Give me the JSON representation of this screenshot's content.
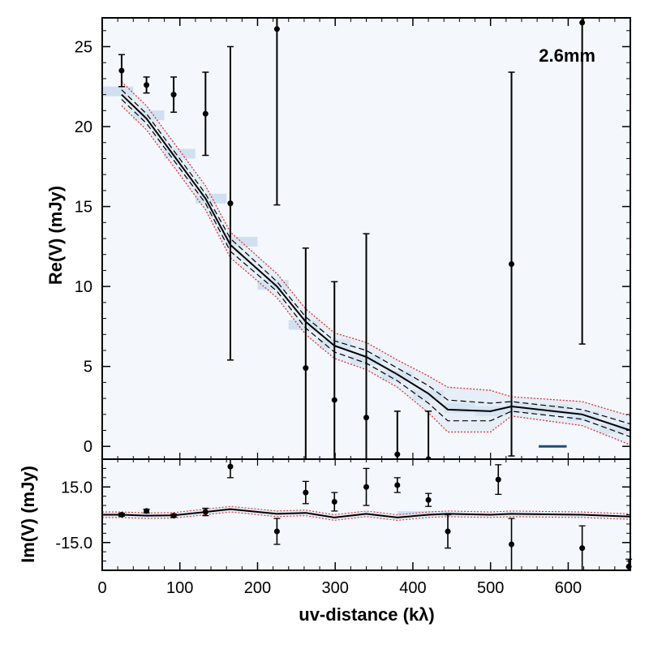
{
  "chart_data": {
    "type": "scatter",
    "xlabel": "uv-distance (kλ)",
    "xlim": [
      0,
      680
    ],
    "x_ticks": [
      0,
      100,
      200,
      300,
      400,
      500,
      600
    ],
    "annotation": "2.6mm",
    "panels": [
      {
        "name": "real",
        "ylabel": "Re(V) (mJy)",
        "ylim": [
          -0.8,
          26.8
        ],
        "y_ticks": [
          0,
          5,
          10,
          15,
          20,
          25
        ],
        "y_tick_labels": [
          "0",
          "5",
          "10",
          "15",
          "20",
          "25"
        ],
        "observed": {
          "x": [
            25,
            57,
            92,
            133,
            165,
            225,
            262,
            299,
            340,
            380,
            420,
            527,
            618
          ],
          "y": [
            23.5,
            22.6,
            22.0,
            20.8,
            15.2,
            26.1,
            4.9,
            2.9,
            1.8,
            -0.5,
            -0.8,
            11.4,
            26.5
          ],
          "err": [
            1.0,
            0.5,
            1.1,
            2.6,
            9.8,
            11.0,
            7.5,
            7.4,
            11.5,
            2.7,
            3.0,
            12.0,
            20.1
          ]
        },
        "model_mean": {
          "x": [
            25,
            57,
            92,
            133,
            165,
            225,
            262,
            299,
            340,
            380,
            420,
            445,
            500,
            527,
            618,
            680
          ],
          "y": [
            22.0,
            20.5,
            18.2,
            15.5,
            12.6,
            10.0,
            7.8,
            6.3,
            5.6,
            4.5,
            3.3,
            2.3,
            2.2,
            2.5,
            2.0,
            1.0
          ]
        },
        "model_inner_lower": [
          21.7,
          20.2,
          17.9,
          15.2,
          12.2,
          9.7,
          7.4,
          5.9,
          5.2,
          4.1,
          2.7,
          1.6,
          1.6,
          2.2,
          1.7,
          0.6
        ],
        "model_inner_upper": [
          22.3,
          20.8,
          18.5,
          15.8,
          13.0,
          10.3,
          8.1,
          6.6,
          6.0,
          4.9,
          3.8,
          2.9,
          2.7,
          2.8,
          2.3,
          1.4
        ],
        "model_outer_lower": [
          21.3,
          19.8,
          17.5,
          14.8,
          11.8,
          9.3,
          7.0,
          5.5,
          4.8,
          3.7,
          2.1,
          0.9,
          0.9,
          1.9,
          1.3,
          0.1
        ],
        "model_outer_upper": [
          22.8,
          21.3,
          19.0,
          16.3,
          13.4,
          10.8,
          8.6,
          7.1,
          6.5,
          5.4,
          4.4,
          3.7,
          3.5,
          3.1,
          2.8,
          1.9
        ],
        "binned_segments": [
          {
            "x0": 0,
            "x1": 40,
            "y": 22.2
          },
          {
            "x0": 40,
            "x1": 80,
            "y": 20.7
          },
          {
            "x0": 80,
            "x1": 120,
            "y": 18.3
          },
          {
            "x0": 120,
            "x1": 160,
            "y": 15.5
          },
          {
            "x0": 160,
            "x1": 200,
            "y": 12.8
          },
          {
            "x0": 200,
            "x1": 240,
            "y": 10.1
          },
          {
            "x0": 240,
            "x1": 280,
            "y": 7.6
          },
          {
            "x0": 280,
            "x1": 320,
            "y": 6.4
          },
          {
            "x0": 320,
            "x1": 360,
            "y": 5.4
          },
          {
            "x0": 360,
            "x1": 400,
            "y": 4.4
          },
          {
            "x0": 400,
            "x1": 440,
            "y": 3.2
          },
          {
            "x0": 440,
            "x1": 480,
            "y": 2.4
          },
          {
            "x0": 480,
            "x1": 520,
            "y": 2.2
          },
          {
            "x0": 520,
            "x1": 560,
            "y": 2.4
          },
          {
            "x0": 560,
            "x1": 600,
            "y": 2.3
          },
          {
            "x0": 600,
            "x1": 640,
            "y": 1.9
          },
          {
            "x0": 640,
            "x1": 680,
            "y": 1.1
          }
        ],
        "dark_segment": {
          "x0": 562,
          "x1": 598,
          "y": 0.0
        }
      },
      {
        "name": "imaginary",
        "ylabel": "Im(V) (mJy)",
        "ylim": [
          -30,
          30
        ],
        "y_ticks": [
          15,
          -15
        ],
        "y_tick_labels": [
          "15.0",
          "-15.0"
        ],
        "observed": {
          "x": [
            25,
            57,
            92,
            133,
            165,
            225,
            262,
            299,
            340,
            380,
            420,
            445,
            510,
            527,
            618,
            678
          ],
          "y": [
            0.0,
            2.0,
            -0.5,
            1.5,
            26.0,
            -9.0,
            12.0,
            7.0,
            15.0,
            16.0,
            8.0,
            -9.0,
            19.0,
            -16.0,
            -18.0,
            -28.0
          ],
          "err": [
            0.8,
            1.0,
            0.8,
            2.0,
            6.0,
            7.0,
            6.0,
            5.0,
            10.0,
            4.0,
            3.5,
            9.0,
            8.0,
            14.0,
            12.0,
            4.0
          ]
        },
        "model_mean": {
          "x": [
            0,
            25,
            57,
            92,
            133,
            165,
            225,
            262,
            299,
            340,
            380,
            420,
            445,
            500,
            527,
            618,
            680
          ],
          "y": [
            0.0,
            0.0,
            -0.5,
            -0.3,
            1.5,
            3.0,
            0.5,
            1.0,
            -1.5,
            0.5,
            -1.5,
            0.0,
            0.5,
            0.0,
            0.5,
            0.0,
            -1.0
          ]
        },
        "model_band_halfwidth": 1.5,
        "binned_segment": {
          "x0": 380,
          "x1": 450,
          "y": 0.6
        }
      }
    ]
  }
}
